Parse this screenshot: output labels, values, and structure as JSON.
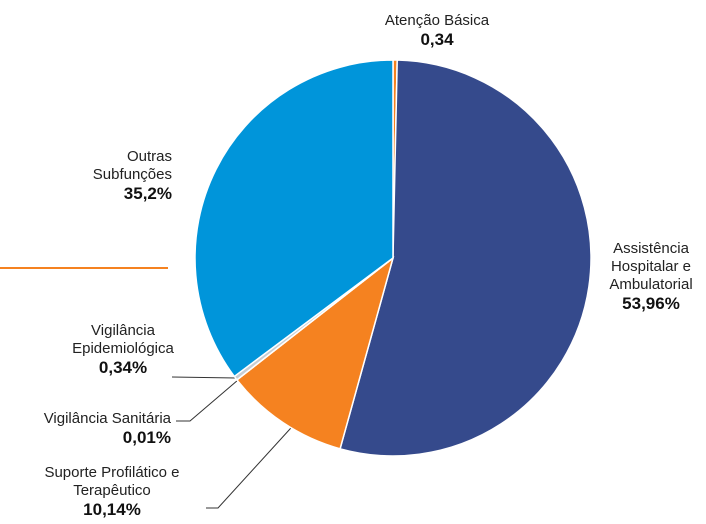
{
  "chart_data": {
    "type": "pie",
    "categories": [
      "Atenção Básica",
      "Assistência Hospitalar e Ambulatorial",
      "Suporte Profilático e Terapêutico",
      "Vigilância Sanitária",
      "Vigilância Epidemiológica",
      "Outras Subfunções"
    ],
    "values": [
      0.34,
      53.96,
      10.14,
      0.01,
      0.34,
      35.2
    ],
    "value_labels": [
      "0,34",
      "53,96%",
      "10,14%",
      "0,01%",
      "0,34%",
      "35,2%"
    ],
    "colors": [
      "#f58220",
      "#354a8c",
      "#f58220",
      "#c8cdd3",
      "#c8cdd3",
      "#0095da"
    ]
  }
}
